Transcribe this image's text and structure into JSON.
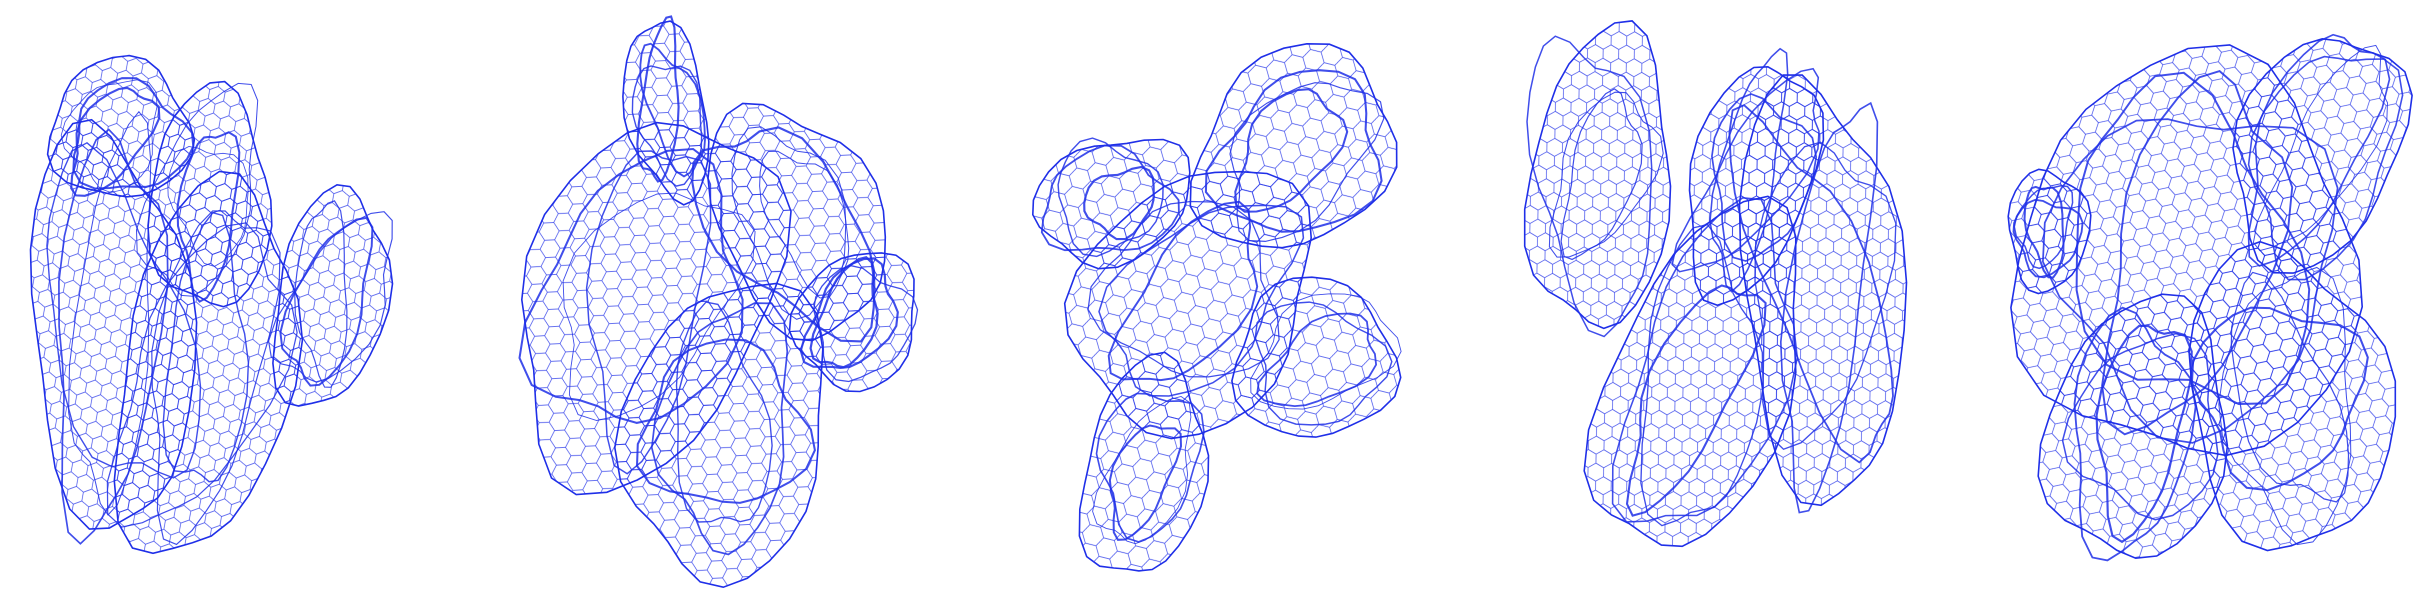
{
  "figure": {
    "panel_count": 5,
    "line_color": "#1f2fe8",
    "background_color": "#ffffff",
    "panels": [
      {
        "subject": "wireframe-surface-1"
      },
      {
        "subject": "wireframe-surface-2"
      },
      {
        "subject": "wireframe-surface-3"
      },
      {
        "subject": "wireframe-surface-4"
      },
      {
        "subject": "wireframe-surface-5"
      }
    ]
  }
}
